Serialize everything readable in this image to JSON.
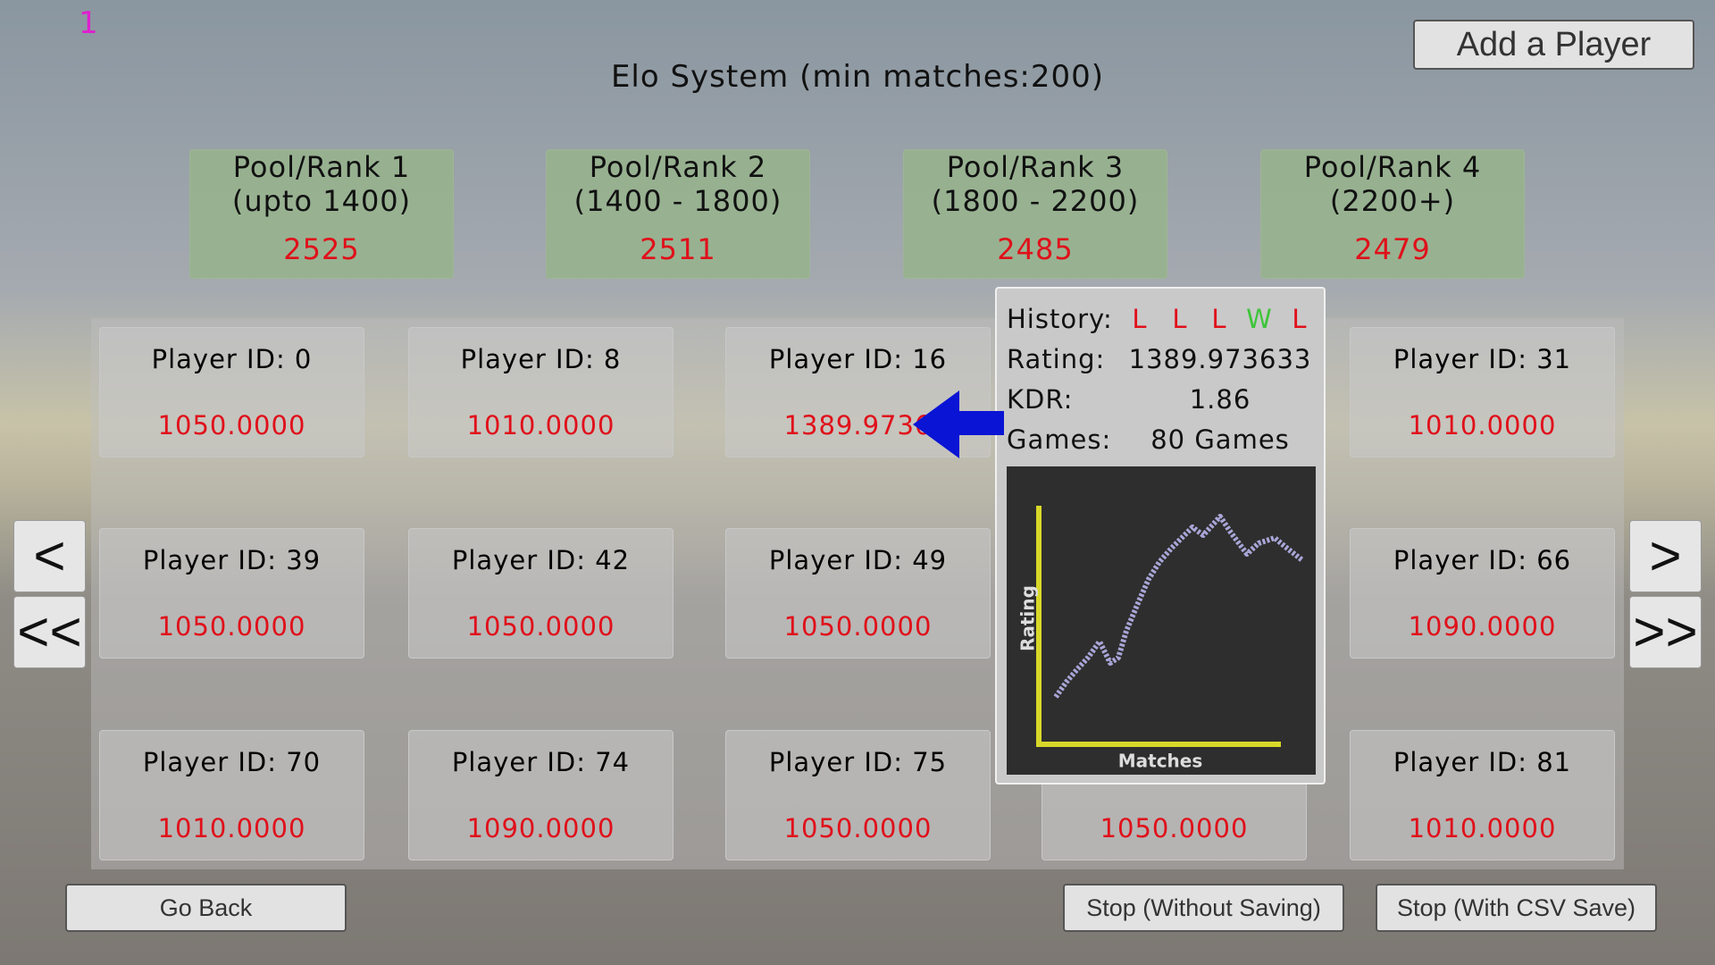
{
  "corner_label": "1",
  "title": "Elo System (min matches:200)",
  "add_player_button": "Add a Player",
  "pools": [
    {
      "name": "Pool/Rank 1",
      "range": "(upto 1400)",
      "count": 2525
    },
    {
      "name": "Pool/Rank 2",
      "range": "(1400 - 1800)",
      "count": 2511
    },
    {
      "name": "Pool/Rank 3",
      "range": "(1800 - 2200)",
      "count": 2485
    },
    {
      "name": "Pool/Rank 4",
      "range": "(2200+)",
      "count": 2479
    }
  ],
  "player_rows": [
    [
      {
        "label": "Player ID: 0",
        "rating": "1050.0000"
      },
      {
        "label": "Player ID: 8",
        "rating": "1010.0000"
      },
      {
        "label": "Player ID: 16",
        "rating": "1389.9736"
      },
      null,
      {
        "label": "Player ID: 31",
        "rating": "1010.0000"
      }
    ],
    [
      {
        "label": "Player ID: 39",
        "rating": "1050.0000"
      },
      {
        "label": "Player ID: 42",
        "rating": "1050.0000"
      },
      {
        "label": "Player ID: 49",
        "rating": "1050.0000"
      },
      null,
      {
        "label": "Player ID: 66",
        "rating": "1090.0000"
      }
    ],
    [
      {
        "label": "Player ID: 70",
        "rating": "1010.0000"
      },
      {
        "label": "Player ID: 74",
        "rating": "1090.0000"
      },
      {
        "label": "Player ID: 75",
        "rating": "1050.0000"
      },
      {
        "rating": "1050.0000"
      },
      {
        "label": "Player ID: 81",
        "rating": "1010.0000"
      }
    ]
  ],
  "nav": {
    "prev": "<",
    "first": "<<",
    "next": ">",
    "last": ">>"
  },
  "footer": {
    "back": "Go Back",
    "stop": "Stop (Without Saving)",
    "stop_save": "Stop (With CSV Save)"
  },
  "tooltip": {
    "history_label": "History:",
    "history": [
      "L",
      "L",
      "L",
      "W",
      "L"
    ],
    "rating_label": "Rating:",
    "rating": "1389.973633",
    "kdr_label": "KDR:",
    "kdr": "1.86",
    "games_label": "Games:",
    "games": "80 Games",
    "chart": {
      "y_label": "Rating",
      "x_label": "Matches"
    }
  }
}
